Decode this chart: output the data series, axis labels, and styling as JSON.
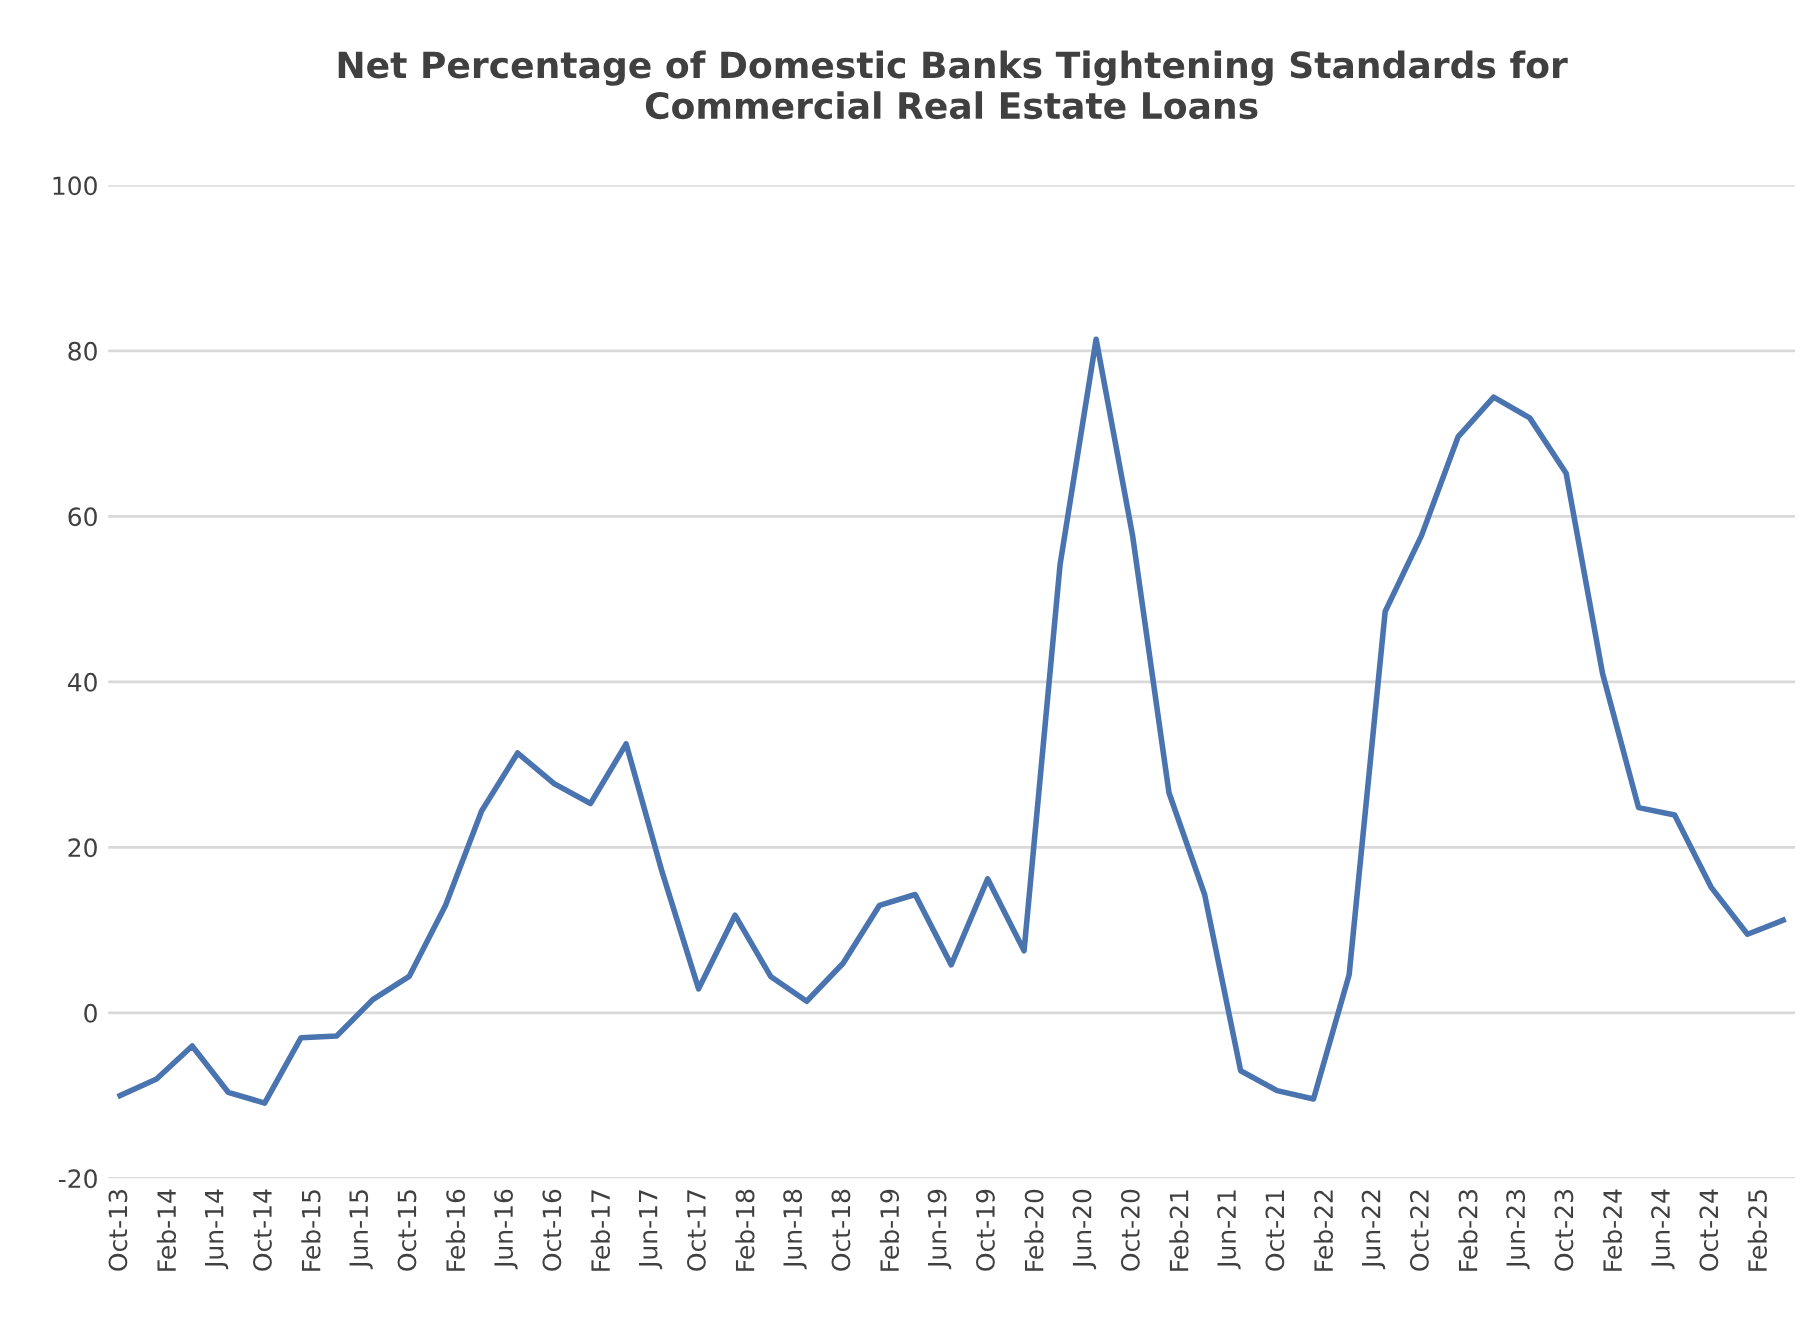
{
  "chart_data": {
    "type": "line",
    "title": "Net Percentage of Domestic Banks Tightening Standards for\nCommercial Real Estate Loans",
    "x": [
      "2013-10",
      "2014-01",
      "2014-04",
      "2014-07",
      "2014-10",
      "2015-01",
      "2015-04",
      "2015-07",
      "2015-10",
      "2016-01",
      "2016-04",
      "2016-07",
      "2016-10",
      "2017-01",
      "2017-04",
      "2017-07",
      "2017-10",
      "2018-01",
      "2018-04",
      "2018-07",
      "2018-10",
      "2019-01",
      "2019-04",
      "2019-07",
      "2019-10",
      "2020-01",
      "2020-04",
      "2020-07",
      "2020-10",
      "2021-01",
      "2021-04",
      "2021-07",
      "2021-10",
      "2022-01",
      "2022-04",
      "2022-07",
      "2022-10",
      "2023-01",
      "2023-04",
      "2023-07",
      "2023-10",
      "2024-01",
      "2024-04",
      "2024-07",
      "2024-10",
      "2025-01",
      "2025-04"
    ],
    "series": [
      {
        "color": "#4a74b0",
        "values": [
          -10,
          -8,
          -4,
          -9.6,
          -10.9,
          -3,
          -2.8,
          1.6,
          4.4,
          13,
          24.4,
          31.4,
          27.7,
          25.3,
          32.5,
          17,
          2.9,
          11.8,
          4.4,
          1.4,
          6,
          13,
          14.3,
          5.8,
          16.2,
          7.5,
          54.2,
          81.4,
          57.7,
          26.6,
          14.3,
          -7,
          -9.4,
          -10.4,
          4.6,
          48.5,
          57.7,
          69.6,
          74.4,
          71.9,
          65.2,
          41,
          24.8,
          23.9,
          15.2,
          9.5,
          11.2
        ]
      }
    ],
    "xlim": [
      "2013-09",
      "2025-05"
    ],
    "xticks": [
      {
        "value": "2013-10",
        "label": "Oct-13"
      },
      {
        "value": "2014-02",
        "label": "Feb-14"
      },
      {
        "value": "2014-06",
        "label": "Jun-14"
      },
      {
        "value": "2014-10",
        "label": "Oct-14"
      },
      {
        "value": "2015-02",
        "label": "Feb-15"
      },
      {
        "value": "2015-06",
        "label": "Jun-15"
      },
      {
        "value": "2015-10",
        "label": "Oct-15"
      },
      {
        "value": "2016-02",
        "label": "Feb-16"
      },
      {
        "value": "2016-06",
        "label": "Jun-16"
      },
      {
        "value": "2016-10",
        "label": "Oct-16"
      },
      {
        "value": "2017-02",
        "label": "Feb-17"
      },
      {
        "value": "2017-06",
        "label": "Jun-17"
      },
      {
        "value": "2017-10",
        "label": "Oct-17"
      },
      {
        "value": "2018-02",
        "label": "Feb-18"
      },
      {
        "value": "2018-06",
        "label": "Jun-18"
      },
      {
        "value": "2018-10",
        "label": "Oct-18"
      },
      {
        "value": "2019-02",
        "label": "Feb-19"
      },
      {
        "value": "2019-06",
        "label": "Jun-19"
      },
      {
        "value": "2019-10",
        "label": "Oct-19"
      },
      {
        "value": "2020-02",
        "label": "Feb-20"
      },
      {
        "value": "2020-06",
        "label": "Jun-20"
      },
      {
        "value": "2020-10",
        "label": "Oct-20"
      },
      {
        "value": "2021-02",
        "label": "Feb-21"
      },
      {
        "value": "2021-06",
        "label": "Jun-21"
      },
      {
        "value": "2021-10",
        "label": "Oct-21"
      },
      {
        "value": "2022-02",
        "label": "Feb-22"
      },
      {
        "value": "2022-06",
        "label": "Jun-22"
      },
      {
        "value": "2022-10",
        "label": "Oct-22"
      },
      {
        "value": "2023-02",
        "label": "Feb-23"
      },
      {
        "value": "2023-06",
        "label": "Jun-23"
      },
      {
        "value": "2023-10",
        "label": "Oct-23"
      },
      {
        "value": "2024-02",
        "label": "Feb-24"
      },
      {
        "value": "2024-06",
        "label": "Jun-24"
      },
      {
        "value": "2024-10",
        "label": "Oct-24"
      },
      {
        "value": "2025-02",
        "label": "Feb-25"
      }
    ],
    "ylim": [
      -20,
      100
    ],
    "yticks": [
      -20,
      0,
      20,
      40,
      60,
      80,
      100
    ],
    "grid": "y"
  }
}
